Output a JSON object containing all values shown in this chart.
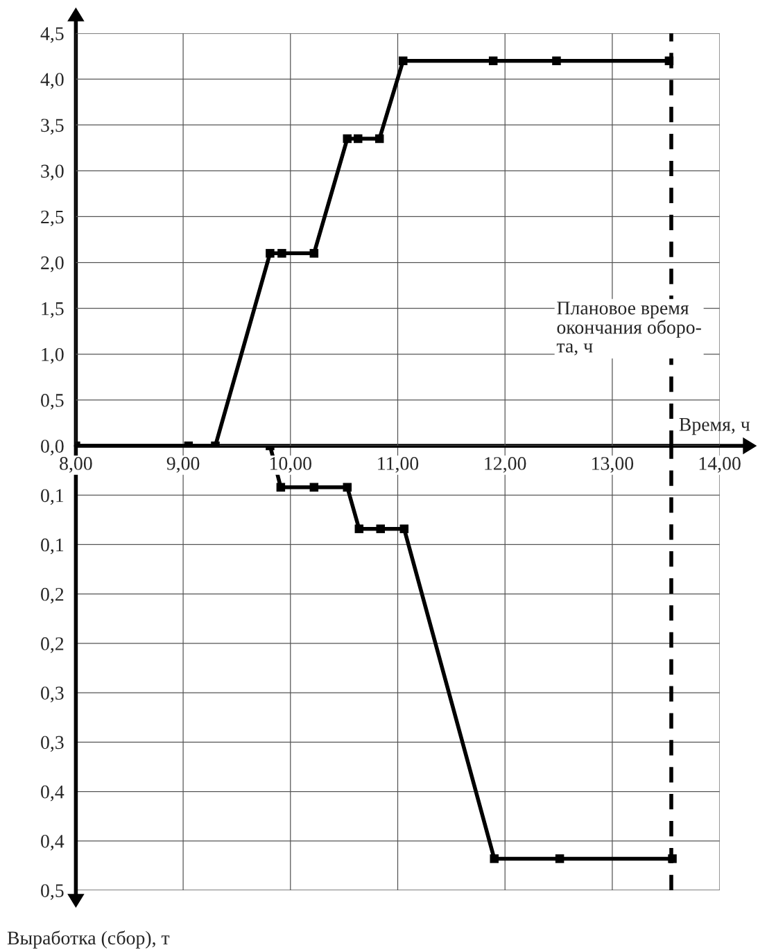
{
  "chart_data": [
    {
      "type": "line",
      "xlabel": "Время, ч",
      "x": [
        8.0,
        9.05,
        9.3,
        9.81,
        9.92,
        10.22,
        10.53,
        10.63,
        10.83,
        11.05,
        11.89,
        12.48,
        13.53
      ],
      "series": [
        {
          "color": "#000000",
          "values": [
            0,
            0,
            0,
            2.1,
            2.1,
            2.1,
            3.35,
            3.35,
            3.35,
            4.2,
            4.2,
            4.2,
            4.2
          ]
        }
      ],
      "marker": "square",
      "line_style": "solid",
      "grid": true,
      "xlim": [
        8,
        14
      ],
      "xticks": [
        {
          "value": 8,
          "label": "8,00"
        },
        {
          "value": 9,
          "label": "9,00"
        },
        {
          "value": 10,
          "label": "10,00"
        },
        {
          "value": 11,
          "label": "11,00"
        },
        {
          "value": 12,
          "label": "12,00"
        },
        {
          "value": 13,
          "label": "13,00"
        },
        {
          "value": 14,
          "label": "14,00"
        }
      ],
      "ylim": [
        0,
        4.5
      ],
      "yticks": [
        {
          "value": 0,
          "label": "0,0"
        },
        {
          "value": 0.5,
          "label": "0,5"
        },
        {
          "value": 1,
          "label": "1,0"
        },
        {
          "value": 1.5,
          "label": "1,5"
        },
        {
          "value": 2,
          "label": "2,0"
        },
        {
          "value": 2.5,
          "label": "2,5"
        },
        {
          "value": 3,
          "label": "3,0"
        },
        {
          "value": 3.5,
          "label": "3,5"
        },
        {
          "value": 4,
          "label": "4,0"
        },
        {
          "value": 4.5,
          "label": "4,5"
        }
      ],
      "ref_lines": [
        {
          "axis": "x",
          "value": 13.55,
          "label": "Плановое время\nокончания оборо-\nта, ч",
          "color": "#000000",
          "line_style": "dashed"
        }
      ]
    },
    {
      "type": "line",
      "ylabel": "Выработка (сбор), т",
      "x": [
        9.81,
        9.91,
        10.22,
        10.53,
        10.64,
        10.84,
        11.06,
        11.9,
        12.51,
        13.56
      ],
      "series": [
        {
          "color": "#000000",
          "values": [
            0,
            0.042,
            0.042,
            0.042,
            0.084,
            0.084,
            0.084,
            0.418,
            0.418,
            0.418
          ]
        }
      ],
      "marker": "square",
      "line_style": "solid",
      "grid": true,
      "tick_labels": "y",
      "xlim": [
        8,
        14
      ],
      "xticks": [
        8,
        9,
        10,
        11,
        12,
        13,
        14
      ],
      "ylim": [
        0.45,
        0
      ],
      "yticks": [
        {
          "value": 0.05,
          "label": "0,1"
        },
        {
          "value": 0.1,
          "label": "0,1"
        },
        {
          "value": 0.15,
          "label": "0,2"
        },
        {
          "value": 0.2,
          "label": "0,2"
        },
        {
          "value": 0.25,
          "label": "0,3"
        },
        {
          "value": 0.3,
          "label": "0,3"
        },
        {
          "value": 0.35,
          "label": "0,4"
        },
        {
          "value": 0.4,
          "label": "0,4"
        },
        {
          "value": 0.45,
          "label": "0,5"
        }
      ],
      "ref_lines": [
        {
          "axis": "x",
          "value": 13.55,
          "color": "#000000",
          "line_style": "dashed"
        }
      ]
    }
  ]
}
